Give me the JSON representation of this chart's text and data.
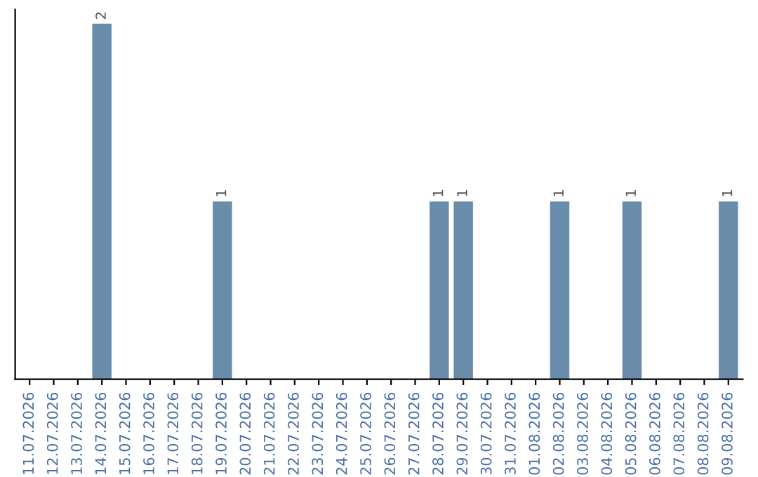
{
  "chart_data": {
    "type": "bar",
    "categories": [
      "11.07.2026",
      "12.07.2026",
      "13.07.2026",
      "14.07.2026",
      "15.07.2026",
      "16.07.2026",
      "17.07.2026",
      "18.07.2026",
      "19.07.2026",
      "20.07.2026",
      "21.07.2026",
      "22.07.2026",
      "23.07.2026",
      "24.07.2026",
      "25.07.2026",
      "26.07.2026",
      "27.07.2026",
      "28.07.2026",
      "29.07.2026",
      "30.07.2026",
      "31.07.2026",
      "01.08.2026",
      "02.08.2026",
      "03.08.2026",
      "04.08.2026",
      "05.08.2026",
      "06.08.2026",
      "07.08.2026",
      "08.08.2026",
      "09.08.2026"
    ],
    "values": [
      0,
      0,
      0,
      2,
      0,
      0,
      0,
      0,
      1,
      0,
      0,
      0,
      0,
      0,
      0,
      0,
      0,
      1,
      1,
      0,
      0,
      0,
      1,
      0,
      0,
      1,
      0,
      0,
      0,
      1
    ],
    "value_labels": [
      null,
      null,
      null,
      "2",
      null,
      null,
      null,
      null,
      "1",
      null,
      null,
      null,
      null,
      null,
      null,
      null,
      null,
      "1",
      "1",
      null,
      null,
      null,
      "1",
      null,
      null,
      "1",
      null,
      null,
      null,
      "1"
    ],
    "color": "#6a8cab",
    "tick_labels": "x",
    "grid": false,
    "legend": false
  }
}
